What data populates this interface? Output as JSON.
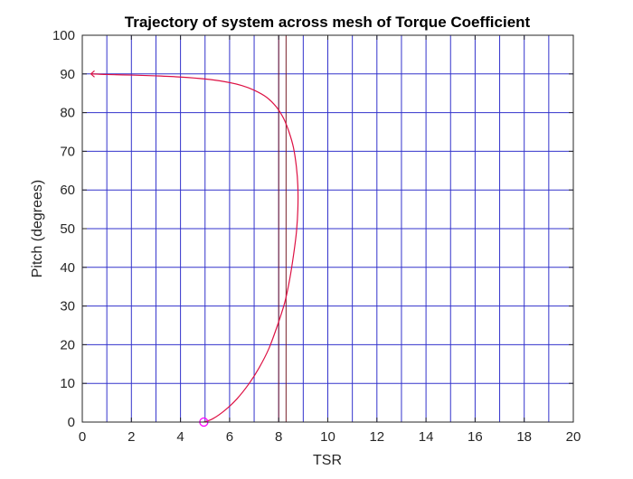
{
  "chart_data": {
    "type": "line",
    "title": "Trajectory of system across mesh of Torque Coefficient",
    "xlabel": "TSR",
    "ylabel": "Pitch (degrees)",
    "xlim": [
      0,
      20
    ],
    "ylim": [
      0,
      100
    ],
    "xticks": [
      "0",
      "2",
      "4",
      "6",
      "8",
      "10",
      "12",
      "14",
      "16",
      "18",
      "20"
    ],
    "yticks": [
      "0",
      "10",
      "20",
      "30",
      "40",
      "50",
      "60",
      "70",
      "80",
      "90",
      "100"
    ],
    "mesh_x": [
      0,
      1,
      2,
      3,
      4,
      5,
      6,
      7,
      8,
      9,
      10,
      11,
      12,
      13,
      14,
      15,
      16,
      17,
      18,
      19,
      20
    ],
    "mesh_y": [
      0,
      10,
      20,
      30,
      40,
      50,
      60,
      70,
      80,
      90,
      100
    ],
    "mesh_color": "#3333cc",
    "vertical_lines": [
      {
        "x": 8.0,
        "color": "#7a1f2a"
      },
      {
        "x": 8.3,
        "color": "#7a1f2a"
      }
    ],
    "series": [
      {
        "color": "#dd1144",
        "x": [
          4.95,
          5.3,
          5.8,
          6.3,
          6.8,
          7.2,
          7.6,
          7.95,
          8.25,
          8.45,
          8.6,
          8.72,
          8.78,
          8.78,
          8.72,
          8.6,
          8.42,
          8.2,
          7.9,
          7.5,
          7.0,
          6.5,
          5.8,
          5.0,
          4.0,
          3.0,
          2.0,
          1.0,
          0.35
        ],
        "y": [
          0,
          0.8,
          3,
          6,
          10,
          14,
          19,
          25,
          31,
          37,
          43,
          49,
          55,
          61,
          66,
          71,
          75,
          78.5,
          81.5,
          84,
          85.8,
          87,
          88,
          88.7,
          89.2,
          89.5,
          89.7,
          89.85,
          90
        ]
      }
    ],
    "start_marker": {
      "x": 4.95,
      "y": 0,
      "color": "#ff00ff"
    },
    "end_marker": {
      "x": 0.35,
      "y": 90,
      "color": "#dd1144"
    }
  }
}
